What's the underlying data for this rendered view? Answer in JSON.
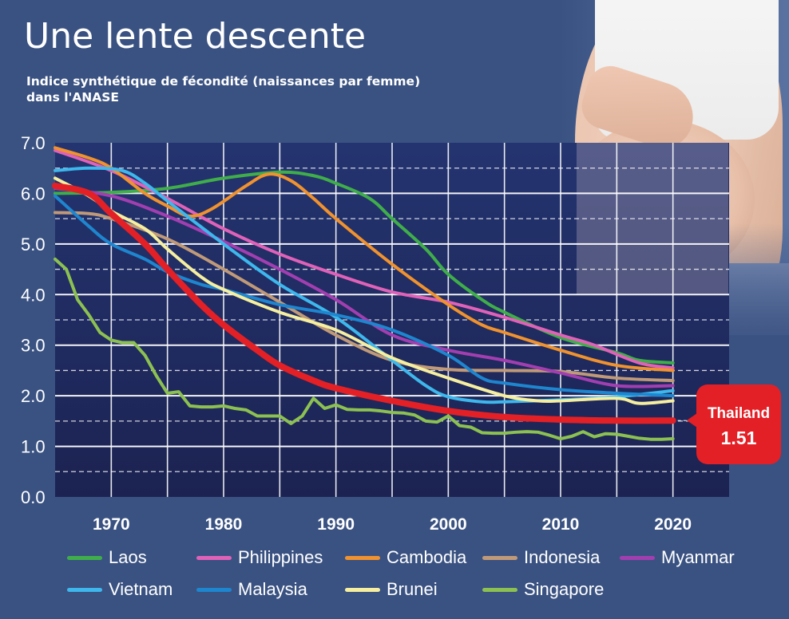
{
  "header": {
    "title": "Une lente descente",
    "subtitle_line1": "Indice synthétique de fécondité (naissances par femme)",
    "subtitle_line2": "dans l'ANASE"
  },
  "callout": {
    "country": "Thailand",
    "value": "1.51",
    "color": "#e32026"
  },
  "colors": {
    "background": "#3a5282",
    "plot_background": "#1f2a5c",
    "grid": "#ffffff"
  },
  "chart_data": {
    "type": "line",
    "title": "Une lente descente",
    "subtitle": "Indice synthétique de fécondité (naissances par femme) dans l'ANASE",
    "xlabel": "",
    "ylabel": "",
    "xlim": [
      1965,
      2025
    ],
    "ylim": [
      0,
      7
    ],
    "x_ticks": [
      "1970",
      "1980",
      "1990",
      "2000",
      "2010",
      "2020"
    ],
    "y_ticks": [
      "0.0",
      "1.0",
      "2.0",
      "3.0",
      "4.0",
      "5.0",
      "6.0",
      "7.0"
    ],
    "grid": true,
    "legend_position": "bottom",
    "annotations": [
      {
        "text": "Thailand 1.51",
        "x": 2020,
        "y": 1.51
      }
    ],
    "series": [
      {
        "name": "Laos",
        "color": "#3fae4a",
        "width": 4,
        "points": [
          [
            1965,
            6.0
          ],
          [
            1970,
            6.02
          ],
          [
            1975,
            6.1
          ],
          [
            1980,
            6.3
          ],
          [
            1985,
            6.42
          ],
          [
            1988,
            6.35
          ],
          [
            1990,
            6.2
          ],
          [
            1993,
            5.9
          ],
          [
            1995,
            5.5
          ],
          [
            1998,
            4.9
          ],
          [
            2000,
            4.4
          ],
          [
            2003,
            3.9
          ],
          [
            2005,
            3.65
          ],
          [
            2010,
            3.15
          ],
          [
            2015,
            2.85
          ],
          [
            2017,
            2.7
          ],
          [
            2020,
            2.65
          ]
        ]
      },
      {
        "name": "Philippines",
        "color": "#e062b8",
        "width": 4,
        "points": [
          [
            1965,
            6.85
          ],
          [
            1970,
            6.45
          ],
          [
            1975,
            5.9
          ],
          [
            1980,
            5.3
          ],
          [
            1985,
            4.8
          ],
          [
            1990,
            4.4
          ],
          [
            1995,
            4.05
          ],
          [
            2000,
            3.85
          ],
          [
            2005,
            3.55
          ],
          [
            2010,
            3.2
          ],
          [
            2013,
            3.0
          ],
          [
            2017,
            2.65
          ],
          [
            2020,
            2.55
          ]
        ]
      },
      {
        "name": "Cambodia",
        "color": "#f0922e",
        "width": 4,
        "points": [
          [
            1965,
            6.9
          ],
          [
            1968,
            6.7
          ],
          [
            1970,
            6.5
          ],
          [
            1973,
            6.0
          ],
          [
            1975,
            5.75
          ],
          [
            1977,
            5.55
          ],
          [
            1979,
            5.7
          ],
          [
            1982,
            6.15
          ],
          [
            1984,
            6.38
          ],
          [
            1986,
            6.25
          ],
          [
            1988,
            5.9
          ],
          [
            1990,
            5.5
          ],
          [
            1995,
            4.6
          ],
          [
            2000,
            3.8
          ],
          [
            2003,
            3.4
          ],
          [
            2005,
            3.25
          ],
          [
            2010,
            2.9
          ],
          [
            2015,
            2.6
          ],
          [
            2020,
            2.5
          ]
        ]
      },
      {
        "name": "Indonesia",
        "color": "#c09a78",
        "width": 4,
        "points": [
          [
            1965,
            5.62
          ],
          [
            1968,
            5.6
          ],
          [
            1970,
            5.5
          ],
          [
            1975,
            5.1
          ],
          [
            1980,
            4.5
          ],
          [
            1985,
            3.85
          ],
          [
            1990,
            3.2
          ],
          [
            1995,
            2.7
          ],
          [
            2000,
            2.52
          ],
          [
            2005,
            2.5
          ],
          [
            2010,
            2.48
          ],
          [
            2015,
            2.35
          ],
          [
            2020,
            2.3
          ]
        ]
      },
      {
        "name": "Myanmar",
        "color": "#a23fb0",
        "width": 4,
        "points": [
          [
            1965,
            6.1
          ],
          [
            1970,
            5.95
          ],
          [
            1975,
            5.55
          ],
          [
            1980,
            5.05
          ],
          [
            1985,
            4.5
          ],
          [
            1990,
            3.9
          ],
          [
            1995,
            3.2
          ],
          [
            2000,
            2.9
          ],
          [
            2005,
            2.7
          ],
          [
            2010,
            2.45
          ],
          [
            2015,
            2.2
          ],
          [
            2020,
            2.2
          ]
        ]
      },
      {
        "name": "Vietnam",
        "color": "#3db7ec",
        "width": 4,
        "points": [
          [
            1965,
            6.45
          ],
          [
            1968,
            6.5
          ],
          [
            1971,
            6.45
          ],
          [
            1973,
            6.2
          ],
          [
            1975,
            5.85
          ],
          [
            1980,
            5.0
          ],
          [
            1985,
            4.2
          ],
          [
            1990,
            3.55
          ],
          [
            1995,
            2.7
          ],
          [
            1998,
            2.2
          ],
          [
            2000,
            1.98
          ],
          [
            2003,
            1.88
          ],
          [
            2005,
            1.88
          ],
          [
            2010,
            1.92
          ],
          [
            2015,
            1.98
          ],
          [
            2020,
            2.1
          ]
        ]
      },
      {
        "name": "Malaysia",
        "color": "#1e86cf",
        "width": 4,
        "points": [
          [
            1965,
            5.95
          ],
          [
            1968,
            5.35
          ],
          [
            1970,
            5.0
          ],
          [
            1973,
            4.7
          ],
          [
            1975,
            4.45
          ],
          [
            1978,
            4.2
          ],
          [
            1980,
            4.1
          ],
          [
            1985,
            3.8
          ],
          [
            1990,
            3.6
          ],
          [
            1995,
            3.3
          ],
          [
            2000,
            2.8
          ],
          [
            2003,
            2.35
          ],
          [
            2005,
            2.25
          ],
          [
            2010,
            2.12
          ],
          [
            2015,
            2.05
          ],
          [
            2020,
            2.0
          ]
        ]
      },
      {
        "name": "Brunei",
        "color": "#f6efa0",
        "width": 4,
        "points": [
          [
            1965,
            6.3
          ],
          [
            1968,
            5.95
          ],
          [
            1970,
            5.65
          ],
          [
            1973,
            5.3
          ],
          [
            1975,
            4.9
          ],
          [
            1978,
            4.35
          ],
          [
            1980,
            4.1
          ],
          [
            1985,
            3.65
          ],
          [
            1990,
            3.3
          ],
          [
            1995,
            2.75
          ],
          [
            2000,
            2.35
          ],
          [
            2005,
            2.0
          ],
          [
            2008,
            1.9
          ],
          [
            2010,
            1.9
          ],
          [
            2015,
            1.95
          ],
          [
            2017,
            1.85
          ],
          [
            2020,
            1.9
          ]
        ]
      },
      {
        "name": "Singapore",
        "color": "#8cc152",
        "width": 4,
        "points": [
          [
            1965,
            4.7
          ],
          [
            1966,
            4.5
          ],
          [
            1967,
            3.9
          ],
          [
            1968,
            3.6
          ],
          [
            1969,
            3.25
          ],
          [
            1970,
            3.1
          ],
          [
            1971,
            3.05
          ],
          [
            1972,
            3.05
          ],
          [
            1973,
            2.8
          ],
          [
            1974,
            2.4
          ],
          [
            1975,
            2.05
          ],
          [
            1976,
            2.08
          ],
          [
            1977,
            1.8
          ],
          [
            1978,
            1.78
          ],
          [
            1979,
            1.78
          ],
          [
            1980,
            1.8
          ],
          [
            1981,
            1.75
          ],
          [
            1982,
            1.72
          ],
          [
            1983,
            1.6
          ],
          [
            1984,
            1.6
          ],
          [
            1985,
            1.6
          ],
          [
            1986,
            1.45
          ],
          [
            1987,
            1.6
          ],
          [
            1988,
            1.95
          ],
          [
            1989,
            1.75
          ],
          [
            1990,
            1.82
          ],
          [
            1991,
            1.73
          ],
          [
            1992,
            1.72
          ],
          [
            1993,
            1.72
          ],
          [
            1994,
            1.7
          ],
          [
            1995,
            1.67
          ],
          [
            1996,
            1.66
          ],
          [
            1997,
            1.62
          ],
          [
            1998,
            1.5
          ],
          [
            1999,
            1.48
          ],
          [
            2000,
            1.6
          ],
          [
            2001,
            1.41
          ],
          [
            2002,
            1.38
          ],
          [
            2003,
            1.27
          ],
          [
            2004,
            1.26
          ],
          [
            2005,
            1.26
          ],
          [
            2006,
            1.28
          ],
          [
            2007,
            1.29
          ],
          [
            2008,
            1.28
          ],
          [
            2009,
            1.22
          ],
          [
            2010,
            1.15
          ],
          [
            2011,
            1.2
          ],
          [
            2012,
            1.29
          ],
          [
            2013,
            1.19
          ],
          [
            2014,
            1.25
          ],
          [
            2015,
            1.24
          ],
          [
            2016,
            1.2
          ],
          [
            2017,
            1.16
          ],
          [
            2018,
            1.14
          ],
          [
            2019,
            1.14
          ],
          [
            2020,
            1.15
          ]
        ]
      },
      {
        "name": "Thailand",
        "color": "#e32026",
        "width": 8,
        "points": [
          [
            1965,
            6.15
          ],
          [
            1968,
            6.0
          ],
          [
            1970,
            5.6
          ],
          [
            1973,
            5.0
          ],
          [
            1975,
            4.5
          ],
          [
            1978,
            3.8
          ],
          [
            1980,
            3.4
          ],
          [
            1983,
            2.9
          ],
          [
            1985,
            2.6
          ],
          [
            1988,
            2.3
          ],
          [
            1990,
            2.15
          ],
          [
            1995,
            1.9
          ],
          [
            2000,
            1.7
          ],
          [
            2005,
            1.58
          ],
          [
            2010,
            1.53
          ],
          [
            2015,
            1.51
          ],
          [
            2020,
            1.51
          ]
        ]
      }
    ]
  },
  "legend": {
    "items": [
      {
        "label": "Laos",
        "color": "#3fae4a"
      },
      {
        "label": "Philippines",
        "color": "#e062b8"
      },
      {
        "label": "Cambodia",
        "color": "#f0922e"
      },
      {
        "label": "Indonesia",
        "color": "#c09a78"
      },
      {
        "label": "Myanmar",
        "color": "#a23fb0"
      },
      {
        "label": "Vietnam",
        "color": "#3db7ec"
      },
      {
        "label": "Malaysia",
        "color": "#1e86cf"
      },
      {
        "label": "Brunei",
        "color": "#f6efa0"
      },
      {
        "label": "Singapore",
        "color": "#8cc152"
      }
    ]
  }
}
